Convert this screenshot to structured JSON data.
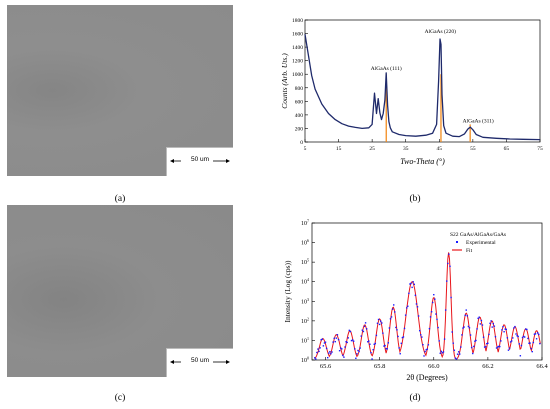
{
  "panels": {
    "a": {
      "label": "(a)",
      "scale_bar": "50 um"
    },
    "b": {
      "label": "(b)"
    },
    "c": {
      "label": "(c)",
      "scale_bar": "50 um"
    },
    "d": {
      "label": "(d)"
    }
  },
  "chart_data": [
    {
      "type": "line",
      "panel": "(b)",
      "title": "",
      "xlabel": "Two-Theta (°)",
      "ylabel": "Counts (Arb. Uts.)",
      "xlim": [
        5,
        75
      ],
      "ylim": [
        0,
        1800
      ],
      "xticks": [
        5,
        15,
        25,
        35,
        45,
        55,
        65,
        75
      ],
      "yticks": [
        0,
        200,
        400,
        600,
        800,
        1000,
        1200,
        1400,
        1600,
        1800
      ],
      "series": [
        {
          "values_x": [
            5,
            6,
            7,
            8,
            10,
            12,
            14,
            16,
            18,
            20,
            22,
            24,
            25,
            25.7,
            26.3,
            26.8,
            27.3,
            27.8,
            28.3,
            28.8,
            29.2,
            29.6,
            30.0,
            30.4,
            31,
            33,
            35,
            38,
            41,
            43,
            44.2,
            44.8,
            45.2,
            45.5,
            45.8,
            46.3,
            47,
            49,
            51,
            52.5,
            53.5,
            54.2,
            55,
            56,
            58,
            62,
            66,
            70,
            75
          ],
          "values_y": [
            1590,
            1280,
            980,
            780,
            560,
            420,
            330,
            270,
            235,
            215,
            200,
            210,
            260,
            720,
            420,
            640,
            430,
            330,
            420,
            620,
            1020,
            540,
            300,
            210,
            150,
            110,
            95,
            85,
            100,
            130,
            260,
            900,
            1520,
            1440,
            700,
            240,
            130,
            85,
            80,
            120,
            190,
            220,
            180,
            110,
            70,
            55,
            45,
            40,
            35
          ]
        }
      ],
      "annotations": [
        {
          "text": "AlGaAs (111)",
          "x": 29.2
        },
        {
          "text": "AlGaAs (220)",
          "x": 45.3
        },
        {
          "text": "AlGaAs (311)",
          "x": 54.2
        }
      ],
      "reference_lines_x": [
        29.2,
        45.5,
        54.2
      ]
    },
    {
      "type": "line",
      "panel": "(d)",
      "title": "S22 GaAs/AlGaAs/GaAs",
      "xlabel": "2θ (Degrees)",
      "ylabel": "Intensity (Log (cps))",
      "xlim": [
        65.55,
        66.4
      ],
      "ylim_exponent": [
        0,
        7
      ],
      "xticks": [
        65.6,
        65.8,
        66.0,
        66.2,
        66.4
      ],
      "yticks_exponent": [
        0,
        1,
        2,
        3,
        4,
        5,
        6,
        7
      ],
      "legend": {
        "position": "top-right",
        "entries": [
          "Experimental",
          "Fit"
        ]
      },
      "series": [
        {
          "name": "Experimental",
          "style": "scatter",
          "color": "#1a1aff",
          "peaks_x": [
            65.59,
            65.64,
            65.69,
            65.745,
            65.8,
            65.85,
            65.92,
            66.0,
            66.055,
            66.12,
            66.17,
            66.215,
            66.26,
            66.3,
            66.34,
            66.38
          ],
          "peaks_log": [
            0.9,
            1.1,
            1.3,
            1.7,
            2.0,
            2.6,
            3.9,
            3.1,
            5.4,
            2.3,
            2.1,
            1.9,
            1.6,
            1.5,
            1.4,
            1.3
          ]
        },
        {
          "name": "Fit",
          "style": "line",
          "color": "#e8161b",
          "peaks_x": [
            65.59,
            65.64,
            65.69,
            65.745,
            65.8,
            65.85,
            65.92,
            66.0,
            66.055,
            66.12,
            66.17,
            66.215,
            66.26,
            66.3,
            66.34,
            66.38
          ],
          "peaks_log": [
            1.1,
            1.3,
            1.5,
            1.8,
            2.1,
            2.7,
            4.0,
            3.2,
            5.5,
            2.4,
            2.2,
            2.0,
            1.8,
            1.7,
            1.6,
            1.5
          ]
        }
      ]
    }
  ]
}
